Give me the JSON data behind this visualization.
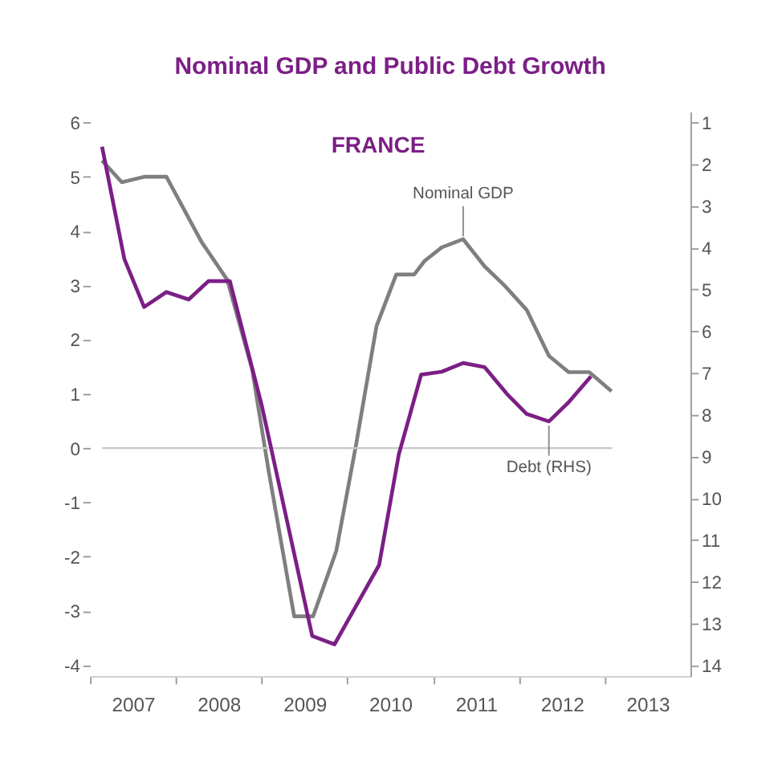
{
  "chart_data": {
    "type": "line",
    "title": "Nominal GDP and Public Debt Growth",
    "subtitle": "FRANCE",
    "xlim": [
      2007,
      2014
    ],
    "xticks": [
      {
        "value": 2007,
        "label": null
      },
      {
        "value": 2007.5,
        "label": "2007"
      },
      {
        "value": 2008,
        "label": null
      },
      {
        "value": 2008.5,
        "label": "2008"
      },
      {
        "value": 2009,
        "label": null
      },
      {
        "value": 2009.5,
        "label": "2009"
      },
      {
        "value": 2010,
        "label": null
      },
      {
        "value": 2010.5,
        "label": "2010"
      },
      {
        "value": 2011,
        "label": null
      },
      {
        "value": 2011.5,
        "label": "2011"
      },
      {
        "value": 2012,
        "label": null
      },
      {
        "value": 2012.5,
        "label": "2012"
      },
      {
        "value": 2013,
        "label": null
      },
      {
        "value": 2013.5,
        "label": "2013"
      }
    ],
    "ylim": [
      -4.2,
      6.2
    ],
    "yticks": [
      -4,
      -3,
      -2,
      -1,
      0,
      1,
      2,
      3,
      4,
      5,
      6
    ],
    "y2lim": [
      14.26,
      0.74
    ],
    "y2ticks": [
      1,
      2,
      3,
      4,
      5,
      6,
      7,
      8,
      9,
      10,
      11,
      12,
      13,
      14
    ],
    "series": [
      {
        "color": "#7f7f7f",
        "x": [
          2007.14,
          2007.37,
          2007.63,
          2007.89,
          2008.3,
          2008.6,
          2008.89,
          2009.08,
          2009.38,
          2009.6,
          2009.87,
          2010.1,
          2010.34,
          2010.57,
          2010.78,
          2010.9,
          2011.1,
          2011.35,
          2011.6,
          2011.83,
          2012.09,
          2012.35,
          2012.58,
          2012.82,
          2013.08
        ],
        "values": [
          5.3,
          4.9,
          5.0,
          5.0,
          3.8,
          3.1,
          1.45,
          -0.4,
          -3.1,
          -3.1,
          -1.9,
          0.05,
          2.25,
          3.2,
          3.2,
          3.45,
          3.7,
          3.85,
          3.35,
          3.0,
          2.55,
          1.7,
          1.4,
          1.4,
          1.05
        ]
      },
      {
        "color": "#7b1f85",
        "axis": "y2",
        "x": [
          2007.14,
          2007.4,
          2007.63,
          2007.89,
          2008.15,
          2008.38,
          2008.63,
          2009.0,
          2009.59,
          2009.85,
          2010.37,
          2010.6,
          2010.86,
          2011.1,
          2011.35,
          2011.6,
          2011.86,
          2012.09,
          2012.35,
          2012.58,
          2012.84
        ],
        "values": [
          1.58,
          4.27,
          5.42,
          5.06,
          5.24,
          4.8,
          4.8,
          7.76,
          13.3,
          13.5,
          11.6,
          8.95,
          7.04,
          6.97,
          6.76,
          6.86,
          7.5,
          7.98,
          8.16,
          7.7,
          7.08
        ]
      }
    ],
    "ref_lines": [
      {
        "axis": "y",
        "value": 0,
        "color": "#c8c8c8"
      }
    ],
    "annotations": [
      {
        "text": "Nominal GDP",
        "x": 2011.35,
        "y": 3.85
      },
      {
        "text": "Debt (RHS)",
        "x": 2012.35,
        "y": 0.47
      }
    ],
    "grid": false,
    "marker": "none",
    "line_style": "solid"
  }
}
